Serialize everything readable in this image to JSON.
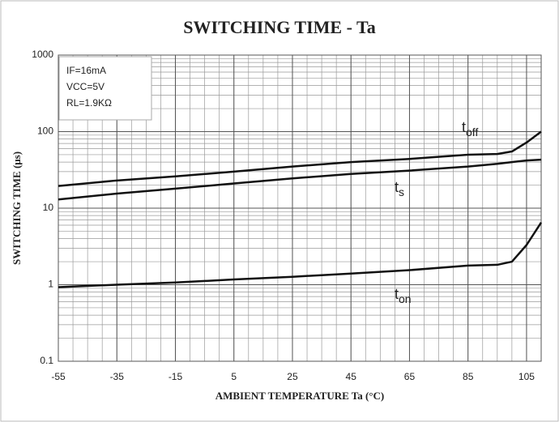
{
  "chart_data": {
    "type": "line",
    "title": "SWITCHING TIME  - Ta",
    "x_label": "AMBIENT TEMPERATURE Ta (°C)",
    "y_label": "SWITCHING TIME (μs)",
    "annotations": [
      "IF=16mA",
      "VCC=5V",
      "RL=1.9KΩ"
    ],
    "x": [
      -55,
      -35,
      -15,
      5,
      25,
      45,
      65,
      85,
      95,
      100,
      105,
      110
    ],
    "series": [
      {
        "name": "toff",
        "color": "#111111",
        "values": [
          19.5,
          23,
          26,
          30,
          35,
          40,
          44,
          50,
          51,
          55,
          72,
          100
        ]
      },
      {
        "name": "ts",
        "color": "#111111",
        "values": [
          13,
          15.5,
          18,
          21,
          24.5,
          28,
          31,
          35,
          38,
          40,
          42,
          43
        ]
      },
      {
        "name": "ton",
        "color": "#111111",
        "values": [
          0.93,
          1.0,
          1.07,
          1.17,
          1.27,
          1.4,
          1.55,
          1.78,
          1.82,
          2.0,
          3.3,
          6.5
        ]
      }
    ],
    "xlim": [
      -55,
      110
    ],
    "xticks": [
      -55,
      -35,
      -15,
      5,
      25,
      45,
      65,
      85,
      105
    ],
    "ylim": [
      0.1,
      1000
    ],
    "yticks": [
      0.1,
      1,
      10,
      100,
      1000
    ],
    "log_y": true,
    "grid": true
  }
}
